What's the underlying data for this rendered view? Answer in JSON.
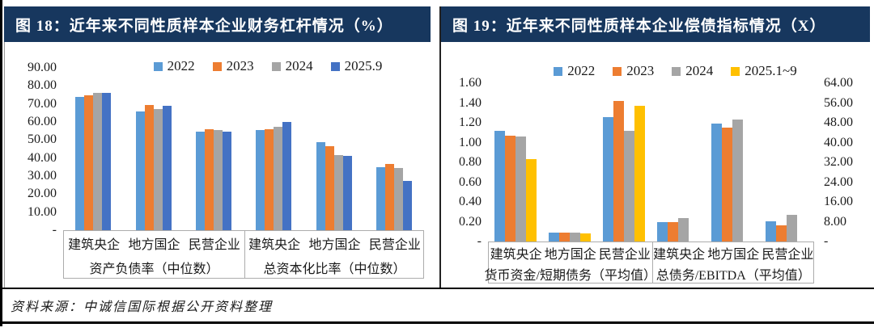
{
  "header": {
    "fig18_title": "图 18：近年来不同性质样本企业财务杠杆情况（%）",
    "fig19_title": "图 19：近年来不同性质样本企业偿债指标情况（X）"
  },
  "footer": {
    "source": "资料来源：中诚信国际根据公开资料整理"
  },
  "colors": {
    "header_bg": "#17375E",
    "series_blue": "#5B9BD5",
    "series_orange": "#ED7D31",
    "series_gray": "#A5A5A5",
    "series_dark_blue": "#4472C4",
    "series_yellow": "#FFC000"
  },
  "chart_data": [
    {
      "type": "bar",
      "title": "图 18：近年来不同性质样本企业财务杠杆情况（%）",
      "legend": [
        "2022",
        "2023",
        "2024",
        "2025.9"
      ],
      "series_colors": [
        "#5B9BD5",
        "#ED7D31",
        "#A5A5A5",
        "#4472C4"
      ],
      "ylim": [
        0,
        90
      ],
      "yticks": [
        "90.00",
        "80.00",
        "70.00",
        "60.00",
        "50.00",
        "40.00",
        "30.00",
        "20.00",
        "10.00",
        "-"
      ],
      "grid": false,
      "legend_position": "top-center",
      "sections": [
        "资产负债率（中位数）",
        "总资本化比率（中位数）"
      ],
      "groups": [
        {
          "section": "资产负债率（中位数）",
          "category": "建筑央企",
          "values": [
            73.8,
            74.8,
            76.2,
            76.0
          ]
        },
        {
          "section": "资产负债率（中位数）",
          "category": "地方国企",
          "values": [
            66.0,
            69.3,
            67.0,
            69.0
          ]
        },
        {
          "section": "资产负债率（中位数）",
          "category": "民营企业",
          "values": [
            54.5,
            56.0,
            55.5,
            54.5
          ]
        },
        {
          "section": "总资本化比率（中位数）",
          "category": "建筑央企",
          "values": [
            55.7,
            56.0,
            57.4,
            60.2
          ]
        },
        {
          "section": "总资本化比率（中位数）",
          "category": "地方国企",
          "values": [
            48.6,
            46.5,
            41.6,
            41.3
          ]
        },
        {
          "section": "总资本化比率（中位数）",
          "category": "民营企业",
          "values": [
            35.0,
            36.5,
            34.5,
            27.2
          ]
        }
      ]
    },
    {
      "type": "bar",
      "title": "图 19：近年来不同性质样本企业偿债指标情况（X）",
      "legend": [
        "2022",
        "2023",
        "2024",
        "2025.1~9"
      ],
      "series_colors": [
        "#5B9BD5",
        "#ED7D31",
        "#A5A5A5",
        "#FFC000"
      ],
      "ylim": [
        0,
        1.6
      ],
      "yticks": [
        "1.60",
        "1.40",
        "1.20",
        "1.00",
        "0.80",
        "0.60",
        "0.40",
        "0.20",
        "-"
      ],
      "right_ylim": [
        0,
        64
      ],
      "right_yticks": [
        "64.00",
        "56.00",
        "48.00",
        "40.00",
        "32.00",
        "24.00",
        "16.00",
        "8.00",
        "-"
      ],
      "grid": false,
      "legend_position": "top-center",
      "sections": [
        "货币资金/短期债务（平均值）",
        "总债务/EBITDA（平均值）"
      ],
      "groups": [
        {
          "section": "货币资金/短期债务（平均值）",
          "category": "建筑央企",
          "axis": "left",
          "values": [
            1.12,
            1.07,
            1.06,
            0.83
          ]
        },
        {
          "section": "货币资金/短期债务（平均值）",
          "category": "地方国企",
          "axis": "left",
          "values": [
            0.09,
            0.09,
            0.09,
            0.08
          ]
        },
        {
          "section": "货币资金/短期债务（平均值）",
          "category": "民营企业",
          "axis": "left",
          "values": [
            1.26,
            1.42,
            1.12,
            1.37
          ]
        },
        {
          "section": "总债务/EBITDA（平均值）",
          "category": "建筑央企",
          "axis": "right",
          "values": [
            7.7,
            7.9,
            9.4,
            null
          ]
        },
        {
          "section": "总债务/EBITDA（平均值）",
          "category": "地方国企",
          "axis": "right",
          "values": [
            47.7,
            46.2,
            49.4,
            null
          ]
        },
        {
          "section": "总债务/EBITDA（平均值）",
          "category": "民营企业",
          "axis": "right",
          "values": [
            8.2,
            6.5,
            10.9,
            null
          ]
        }
      ]
    }
  ]
}
